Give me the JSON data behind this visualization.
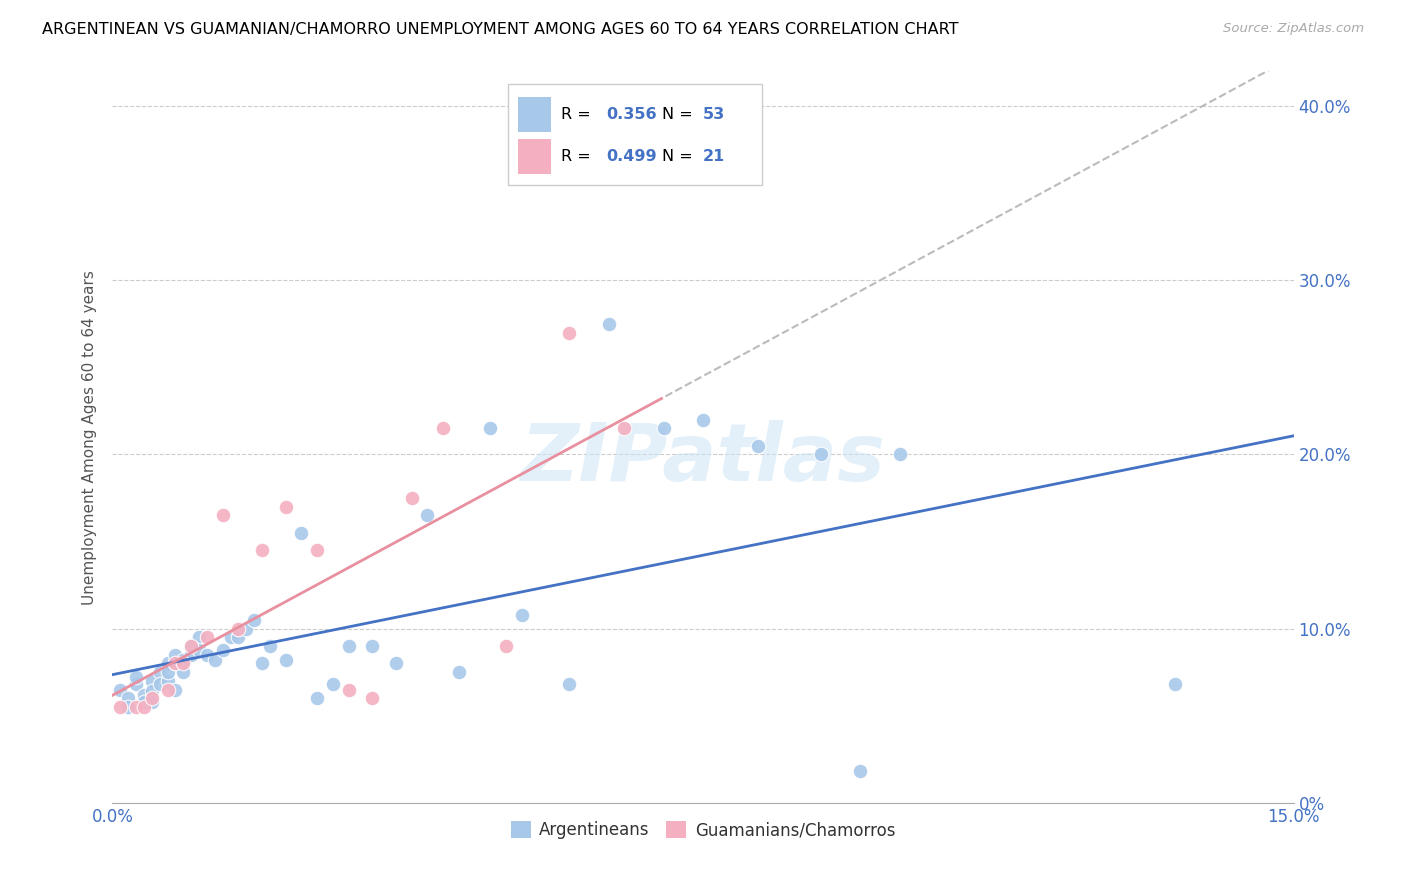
{
  "title": "ARGENTINEAN VS GUAMANIAN/CHAMORRO UNEMPLOYMENT AMONG AGES 60 TO 64 YEARS CORRELATION CHART",
  "source": "Source: ZipAtlas.com",
  "ylabel": "Unemployment Among Ages 60 to 64 years",
  "xlim": [
    0.0,
    0.15
  ],
  "ylim": [
    0.0,
    0.42
  ],
  "xtick_positions": [
    0.0,
    0.025,
    0.05,
    0.075,
    0.1,
    0.125,
    0.15
  ],
  "xtick_labels": [
    "0.0%",
    "",
    "",
    "",
    "",
    "",
    "15.0%"
  ],
  "ytick_positions": [
    0.0,
    0.1,
    0.2,
    0.3,
    0.4
  ],
  "ytick_labels_right": [
    "0%",
    "10.0%",
    "20.0%",
    "30.0%",
    "40.0%"
  ],
  "legend_r1": "R = 0.356",
  "legend_n1": "N = 53",
  "legend_r2": "R = 0.499",
  "legend_n2": "N = 21",
  "watermark": "ZIPatlas",
  "blue_scatter_color": "#a8c8ea",
  "pink_scatter_color": "#f4afc0",
  "blue_line_color": "#4472c4",
  "pink_line_color": "#e8909f",
  "dashed_line_color": "#bbbbbb",
  "arg_x": [
    0.001,
    0.002,
    0.002,
    0.003,
    0.003,
    0.004,
    0.004,
    0.005,
    0.005,
    0.005,
    0.006,
    0.006,
    0.007,
    0.007,
    0.007,
    0.008,
    0.008,
    0.008,
    0.009,
    0.009,
    0.01,
    0.01,
    0.011,
    0.011,
    0.012,
    0.013,
    0.014,
    0.015,
    0.016,
    0.017,
    0.018,
    0.019,
    0.02,
    0.022,
    0.024,
    0.026,
    0.028,
    0.03,
    0.033,
    0.036,
    0.04,
    0.044,
    0.048,
    0.052,
    0.058,
    0.063,
    0.07,
    0.075,
    0.082,
    0.09,
    0.095,
    0.1,
    0.135
  ],
  "arg_y": [
    0.065,
    0.06,
    0.055,
    0.068,
    0.072,
    0.062,
    0.058,
    0.07,
    0.064,
    0.058,
    0.075,
    0.068,
    0.07,
    0.08,
    0.075,
    0.065,
    0.08,
    0.085,
    0.082,
    0.075,
    0.09,
    0.085,
    0.095,
    0.088,
    0.085,
    0.082,
    0.088,
    0.095,
    0.095,
    0.1,
    0.105,
    0.08,
    0.09,
    0.082,
    0.155,
    0.06,
    0.068,
    0.09,
    0.09,
    0.08,
    0.165,
    0.075,
    0.215,
    0.108,
    0.068,
    0.275,
    0.215,
    0.22,
    0.205,
    0.2,
    0.018,
    0.2,
    0.068
  ],
  "gua_x": [
    0.001,
    0.003,
    0.004,
    0.005,
    0.007,
    0.008,
    0.009,
    0.01,
    0.012,
    0.014,
    0.016,
    0.019,
    0.022,
    0.026,
    0.03,
    0.033,
    0.038,
    0.042,
    0.05,
    0.058,
    0.065
  ],
  "gua_y": [
    0.055,
    0.055,
    0.055,
    0.06,
    0.065,
    0.08,
    0.08,
    0.09,
    0.095,
    0.165,
    0.1,
    0.145,
    0.17,
    0.145,
    0.065,
    0.06,
    0.175,
    0.215,
    0.09,
    0.27,
    0.215
  ]
}
